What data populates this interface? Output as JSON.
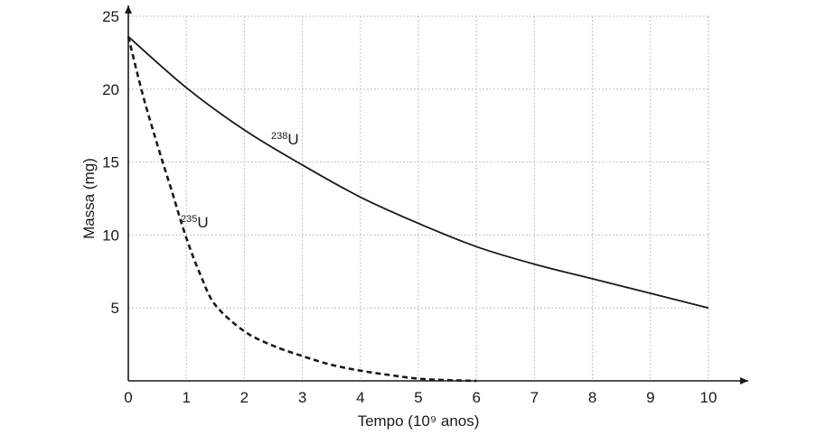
{
  "chart_data": {
    "type": "line",
    "xlabel": "Tempo (10⁹ anos)",
    "ylabel": "Massa (mg)",
    "xlim": [
      0,
      10
    ],
    "ylim": [
      0,
      25
    ],
    "x_ticks": [
      0,
      1,
      2,
      3,
      4,
      5,
      6,
      7,
      8,
      9,
      10
    ],
    "y_ticks": [
      5,
      10,
      15,
      20,
      25
    ],
    "grid": true,
    "series": [
      {
        "name": "238U",
        "label_mass_number": "238",
        "label_element": "U",
        "line_style": "solid",
        "x": [
          0,
          1,
          2,
          3,
          4,
          5,
          6,
          7,
          8,
          9,
          10
        ],
        "y": [
          23.6,
          20.1,
          17.2,
          14.8,
          12.6,
          10.8,
          9.2,
          8.0,
          7.0,
          6.0,
          5.0
        ]
      },
      {
        "name": "235U",
        "label_mass_number": "235",
        "label_element": "U",
        "line_style": "dashed",
        "x": [
          0,
          0.25,
          0.5,
          0.75,
          1,
          1.25,
          1.5,
          2,
          2.5,
          3,
          3.5,
          4,
          4.5,
          5,
          5.5,
          6
        ],
        "y": [
          23.6,
          19.6,
          16.2,
          13.0,
          9.8,
          7.2,
          5.2,
          3.4,
          2.4,
          1.7,
          1.1,
          0.7,
          0.4,
          0.15,
          0.05,
          0.0
        ]
      }
    ]
  }
}
